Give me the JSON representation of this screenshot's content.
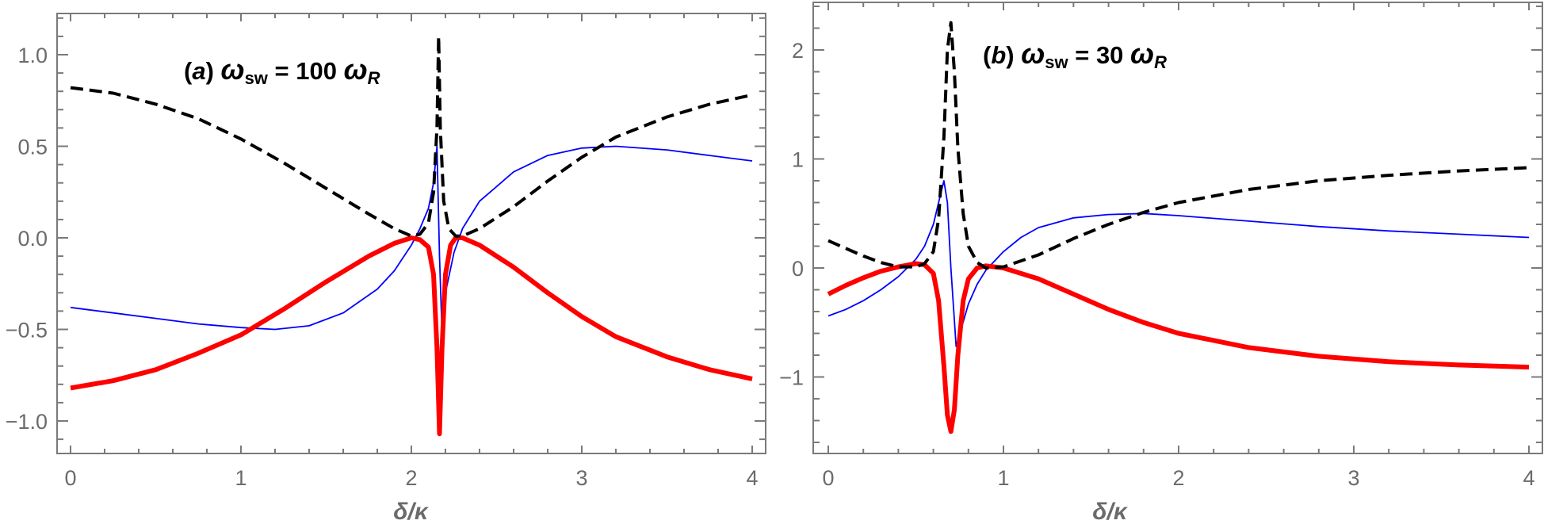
{
  "chart_data": [
    {
      "type": "line",
      "panel": "a",
      "title": "(a) ω_sw = 100 ω_R",
      "title_parts": {
        "label": "(a)",
        "lhs": "ω",
        "lhs_sub": "sw",
        "eq": "= 100",
        "rhs": "ω",
        "rhs_sub": "R"
      },
      "xlabel": "δ/κ",
      "ylabel": "",
      "xlim": [
        0,
        4
      ],
      "ylim": [
        -1.15,
        1.25
      ],
      "xticks": [
        0,
        1,
        2,
        3,
        4
      ],
      "yticks": [
        -1.0,
        -0.5,
        0.0,
        0.5,
        1.0
      ],
      "ytick_labels": [
        "−1.0",
        "−0.5",
        "0.0",
        "0.5",
        "1.0"
      ],
      "xtick_labels": [
        "0",
        "1",
        "2",
        "3",
        "4"
      ],
      "grid": false,
      "legend": null,
      "series": [
        {
          "name": "black-dashed",
          "color": "#000000",
          "style": "dashed",
          "x": [
            0,
            0.25,
            0.5,
            0.75,
            1.0,
            1.25,
            1.5,
            1.75,
            1.9,
            2.0,
            2.05,
            2.1,
            2.13,
            2.15,
            2.16,
            2.17,
            2.19,
            2.22,
            2.26,
            2.3,
            2.4,
            2.6,
            2.8,
            3.0,
            3.2,
            3.5,
            3.75,
            4.0
          ],
          "y": [
            0.82,
            0.79,
            0.73,
            0.65,
            0.54,
            0.41,
            0.27,
            0.13,
            0.05,
            0.01,
            0.02,
            0.08,
            0.25,
            0.6,
            1.1,
            0.6,
            0.2,
            0.05,
            0.01,
            0.01,
            0.05,
            0.17,
            0.31,
            0.44,
            0.55,
            0.66,
            0.73,
            0.78
          ]
        },
        {
          "name": "blue-thin",
          "color": "#0000ff",
          "style": "solid",
          "x": [
            0,
            0.25,
            0.5,
            0.75,
            1.0,
            1.2,
            1.4,
            1.6,
            1.8,
            1.9,
            2.0,
            2.05,
            2.1,
            2.13,
            2.15,
            2.165,
            2.18,
            2.2,
            2.25,
            2.3,
            2.4,
            2.6,
            2.8,
            3.0,
            3.2,
            3.5,
            3.75,
            4.0
          ],
          "y": [
            -0.38,
            -0.41,
            -0.44,
            -0.47,
            -0.49,
            -0.5,
            -0.48,
            -0.41,
            -0.28,
            -0.18,
            -0.04,
            0.05,
            0.16,
            0.3,
            0.5,
            -0.1,
            -0.52,
            -0.3,
            -0.08,
            0.05,
            0.2,
            0.36,
            0.45,
            0.49,
            0.5,
            0.48,
            0.45,
            0.42
          ]
        },
        {
          "name": "red-thick",
          "color": "#ff0000",
          "style": "solid",
          "x": [
            0,
            0.25,
            0.5,
            0.75,
            1.0,
            1.25,
            1.5,
            1.75,
            1.9,
            2.0,
            2.05,
            2.1,
            2.13,
            2.15,
            2.165,
            2.18,
            2.2,
            2.23,
            2.26,
            2.3,
            2.4,
            2.6,
            2.8,
            3.0,
            3.2,
            3.5,
            3.75,
            4.0
          ],
          "y": [
            -0.82,
            -0.78,
            -0.72,
            -0.63,
            -0.53,
            -0.39,
            -0.24,
            -0.1,
            -0.03,
            0.0,
            -0.01,
            -0.05,
            -0.2,
            -0.6,
            -1.07,
            -0.6,
            -0.2,
            -0.04,
            0.0,
            0.0,
            -0.04,
            -0.16,
            -0.3,
            -0.43,
            -0.54,
            -0.65,
            -0.72,
            -0.77
          ]
        }
      ]
    },
    {
      "type": "line",
      "panel": "b",
      "title": "(b) ω_sw = 30 ω_R",
      "title_parts": {
        "label": "(b)",
        "lhs": "ω",
        "lhs_sub": "sw",
        "eq": "= 30",
        "rhs": "ω",
        "rhs_sub": "R"
      },
      "xlabel": "δ/κ",
      "ylabel": "",
      "xlim": [
        0,
        4
      ],
      "ylim": [
        -1.7,
        2.45
      ],
      "xticks": [
        0,
        1,
        2,
        3,
        4
      ],
      "yticks": [
        -1,
        0,
        1,
        2
      ],
      "ytick_labels": [
        "−1",
        "0",
        "1",
        "2"
      ],
      "xtick_labels": [
        "0",
        "1",
        "2",
        "3",
        "4"
      ],
      "grid": false,
      "legend": null,
      "series": [
        {
          "name": "black-dashed",
          "color": "#000000",
          "style": "dashed",
          "x": [
            0,
            0.1,
            0.2,
            0.3,
            0.4,
            0.5,
            0.55,
            0.6,
            0.63,
            0.66,
            0.68,
            0.7,
            0.72,
            0.74,
            0.77,
            0.8,
            0.85,
            0.9,
            1.0,
            1.2,
            1.4,
            1.6,
            1.8,
            2.0,
            2.4,
            2.8,
            3.2,
            3.6,
            4.0
          ],
          "y": [
            0.25,
            0.18,
            0.11,
            0.05,
            0.01,
            0.01,
            0.04,
            0.15,
            0.45,
            1.2,
            2.0,
            2.25,
            1.8,
            1.1,
            0.5,
            0.2,
            0.05,
            0.0,
            0.01,
            0.12,
            0.27,
            0.4,
            0.51,
            0.6,
            0.72,
            0.8,
            0.85,
            0.89,
            0.92
          ]
        },
        {
          "name": "blue-thin",
          "color": "#0000ff",
          "style": "solid",
          "x": [
            0,
            0.1,
            0.2,
            0.3,
            0.4,
            0.5,
            0.55,
            0.6,
            0.63,
            0.66,
            0.68,
            0.7,
            0.73,
            0.76,
            0.8,
            0.85,
            0.9,
            1.0,
            1.1,
            1.2,
            1.4,
            1.6,
            1.8,
            2.0,
            2.4,
            2.8,
            3.2,
            3.6,
            4.0
          ],
          "y": [
            -0.44,
            -0.38,
            -0.3,
            -0.2,
            -0.08,
            0.08,
            0.2,
            0.4,
            0.6,
            0.8,
            0.6,
            0.0,
            -0.72,
            -0.55,
            -0.33,
            -0.15,
            -0.02,
            0.15,
            0.28,
            0.37,
            0.46,
            0.49,
            0.5,
            0.48,
            0.43,
            0.38,
            0.34,
            0.31,
            0.28
          ]
        },
        {
          "name": "red-thick",
          "color": "#ff0000",
          "style": "solid",
          "x": [
            0,
            0.1,
            0.2,
            0.3,
            0.4,
            0.5,
            0.55,
            0.6,
            0.63,
            0.66,
            0.68,
            0.7,
            0.72,
            0.74,
            0.77,
            0.8,
            0.85,
            0.9,
            1.0,
            1.2,
            1.4,
            1.6,
            1.8,
            2.0,
            2.4,
            2.8,
            3.2,
            3.6,
            4.0
          ],
          "y": [
            -0.24,
            -0.16,
            -0.09,
            -0.03,
            0.01,
            0.04,
            0.03,
            -0.05,
            -0.3,
            -0.9,
            -1.35,
            -1.5,
            -1.3,
            -0.8,
            -0.3,
            -0.1,
            0.0,
            0.02,
            0.0,
            -0.1,
            -0.24,
            -0.38,
            -0.5,
            -0.6,
            -0.73,
            -0.81,
            -0.86,
            -0.89,
            -0.91
          ]
        }
      ]
    }
  ]
}
